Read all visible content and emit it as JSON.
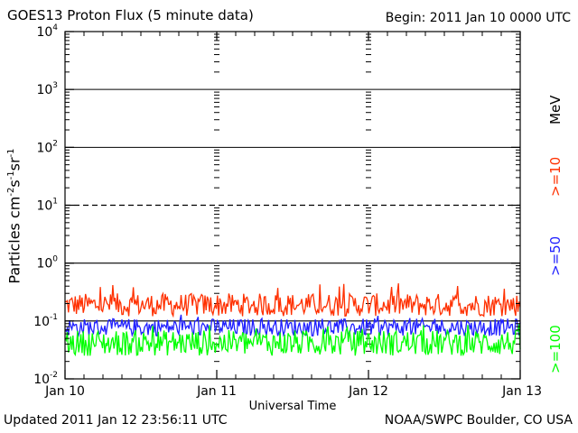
{
  "header": {
    "title": "GOES13 Proton Flux (5 minute data)",
    "begin": "Begin: 2011 Jan 10 0000 UTC"
  },
  "footer": {
    "updated": "Updated 2011 Jan 12 23:56:11 UTC",
    "credit": "NOAA/SWPC Boulder, CO USA"
  },
  "chart_data": {
    "type": "line",
    "title": "GOES13 Proton Flux (5 minute data)",
    "xlabel": "Universal Time",
    "ylabel_parts": {
      "base": "Particles cm",
      "e1": "-2",
      "s": "s",
      "e2": "-1",
      "sr": "sr",
      "e3": "-1"
    },
    "yscale": "log",
    "ylim": [
      0.01,
      10000
    ],
    "y_ticks": [
      {
        "value": 0.01,
        "base": "10",
        "exp": "-2"
      },
      {
        "value": 0.1,
        "base": "10",
        "exp": "-1"
      },
      {
        "value": 1,
        "base": "10",
        "exp": "0"
      },
      {
        "value": 10,
        "base": "10",
        "exp": "1"
      },
      {
        "value": 100,
        "base": "10",
        "exp": "2"
      },
      {
        "value": 1000,
        "base": "10",
        "exp": "3"
      },
      {
        "value": 10000,
        "base": "10",
        "exp": "4"
      }
    ],
    "x_ticks": [
      "Jan 10",
      "Jan 11",
      "Jan 12",
      "Jan 13"
    ],
    "xlim_days": [
      0,
      3
    ],
    "threshold_lines": [
      {
        "value": 10,
        "style": "dashed"
      },
      {
        "value": 1,
        "style": "solid"
      },
      {
        "value": 0.1,
        "style": "solid"
      }
    ],
    "units_label": "MeV",
    "series": [
      {
        "name": ">=10",
        "color": "#ff3000",
        "typical_low": 0.12,
        "typical_high": 0.3,
        "peak": 0.45
      },
      {
        "name": ">=50",
        "color": "#2020ff",
        "typical_low": 0.055,
        "typical_high": 0.11,
        "peak": 0.13
      },
      {
        "name": ">=100",
        "color": "#00ff00",
        "typical_low": 0.025,
        "typical_high": 0.07,
        "peak": 0.09
      }
    ]
  }
}
